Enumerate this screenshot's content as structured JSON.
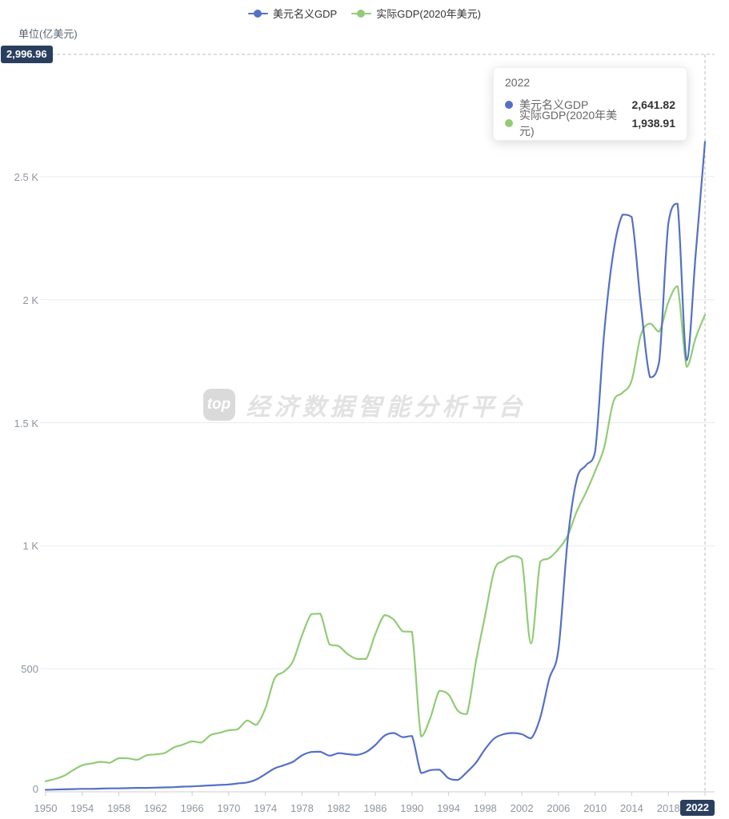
{
  "unit_label": "单位(亿美元)",
  "max_badge_label": "2,996.96",
  "colors": {
    "nominal_blue": "#5470c6",
    "real_green": "#91cc75",
    "badge_bg": "#2a3f5f"
  },
  "legend": [
    {
      "label": "美元名义GDP",
      "color": "#5470c6"
    },
    {
      "label": "实际GDP(2020年美元)",
      "color": "#91cc75"
    }
  ],
  "tooltip": {
    "title": "2022",
    "rows": [
      {
        "label": "美元名义GDP",
        "value": "2,641.82",
        "color": "#5470c6"
      },
      {
        "label": "实际GDP(2020年美元)",
        "value": "1,938.91",
        "color": "#91cc75"
      }
    ]
  },
  "watermark": {
    "logo": "top",
    "text": "经济数据智能分析平台"
  },
  "chart_data": {
    "type": "line",
    "title": "",
    "xlabel": "",
    "ylabel": "单位(亿美元)",
    "grid": "horizontal",
    "legend_position": "top",
    "ylim": [
      0,
      2996.96
    ],
    "max_marker": {
      "value": 2996.96,
      "label": "2,996.96"
    },
    "current_x": {
      "year": 2022,
      "label": "2022"
    },
    "y_ticks": [
      {
        "value": 0,
        "label": "0"
      },
      {
        "value": 500,
        "label": "500"
      },
      {
        "value": 1000,
        "label": "1 K"
      },
      {
        "value": 1500,
        "label": "1.5 K"
      },
      {
        "value": 2000,
        "label": "2 K"
      },
      {
        "value": 2500,
        "label": "2.5 K"
      }
    ],
    "x_tick_years": [
      1950,
      1954,
      1958,
      1962,
      1966,
      1970,
      1974,
      1978,
      1982,
      1986,
      1990,
      1994,
      1998,
      2002,
      2006,
      2010,
      2014,
      2018,
      2022
    ],
    "x": [
      1950,
      1951,
      1952,
      1953,
      1954,
      1955,
      1956,
      1957,
      1958,
      1959,
      1960,
      1961,
      1962,
      1963,
      1964,
      1965,
      1966,
      1967,
      1968,
      1969,
      1970,
      1971,
      1972,
      1973,
      1974,
      1975,
      1976,
      1977,
      1978,
      1979,
      1980,
      1981,
      1982,
      1983,
      1984,
      1985,
      1986,
      1987,
      1988,
      1989,
      1990,
      1991,
      1992,
      1993,
      1994,
      1995,
      1996,
      1997,
      1998,
      1999,
      2000,
      2001,
      2002,
      2003,
      2004,
      2005,
      2006,
      2007,
      2008,
      2009,
      2010,
      2011,
      2012,
      2013,
      2014,
      2015,
      2016,
      2017,
      2018,
      2019,
      2020,
      2021,
      2022
    ],
    "series": [
      {
        "name": "美元名义GDP",
        "color": "#5470c6",
        "values": [
          8,
          9,
          10,
          11,
          12,
          12,
          13,
          14,
          14,
          15,
          16,
          16,
          17,
          18,
          19,
          21,
          22,
          24,
          26,
          28,
          30,
          34,
          38,
          50,
          72,
          95,
          108,
          122,
          148,
          162,
          163,
          147,
          157,
          153,
          150,
          162,
          190,
          228,
          239,
          222,
          227,
          76,
          88,
          90,
          55,
          48,
          80,
          119,
          174,
          217,
          234,
          239,
          234,
          217,
          300,
          460,
          580,
          1020,
          1270,
          1327,
          1382,
          1868,
          2194,
          2346,
          2336,
          1977,
          1685,
          1750,
          2310,
          2390,
          1754,
          2194,
          2641.82
        ]
      },
      {
        "name": "实际GDP(2020年美元)",
        "color": "#91cc75",
        "values": [
          43,
          52,
          65,
          88,
          108,
          115,
          122,
          118,
          137,
          136,
          130,
          148,
          152,
          158,
          180,
          192,
          205,
          200,
          230,
          240,
          250,
          255,
          290,
          272,
          340,
          460,
          488,
          530,
          636,
          722,
          724,
          599,
          592,
          559,
          540,
          540,
          641,
          718,
          700,
          652,
          650,
          225,
          300,
          411,
          395,
          330,
          316,
          532,
          717,
          901,
          939,
          958,
          945,
          603,
          934,
          950,
          987,
          1040,
          1140,
          1216,
          1303,
          1401,
          1586,
          1622,
          1672,
          1857,
          1903,
          1870,
          1990,
          2055,
          1727,
          1847,
          1938.91
        ]
      }
    ]
  }
}
